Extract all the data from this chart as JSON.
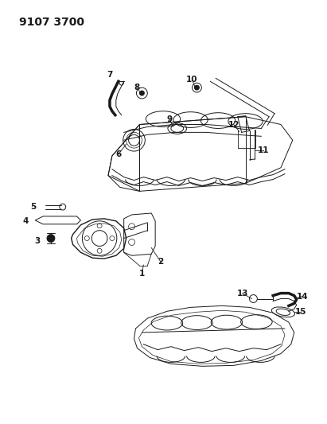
{
  "title": "9107 3700",
  "background_color": "#ffffff",
  "line_color": "#1a1a1a",
  "title_fontsize": 10,
  "label_fontsize": 7.5,
  "fig_width": 4.11,
  "fig_height": 5.33,
  "dpi": 100
}
